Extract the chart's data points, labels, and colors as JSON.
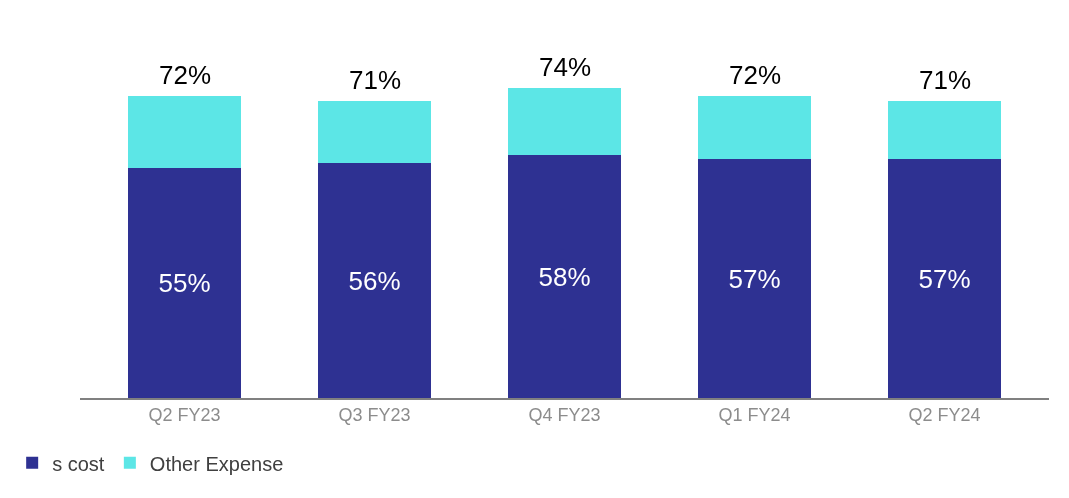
{
  "chart_data": {
    "type": "bar",
    "stacked": true,
    "categories": [
      "Q2 FY23",
      "Q3 FY23",
      "Q4 FY23",
      "Q1 FY24",
      "Q2 FY24"
    ],
    "series": [
      {
        "name": "s cost",
        "color": "#2e3192",
        "values": [
          55,
          56,
          58,
          57,
          57
        ],
        "value_labels": [
          "55%",
          "56%",
          "58%",
          "57%",
          "57%"
        ]
      },
      {
        "name": "Other Expense",
        "color": "#5ce6e6",
        "values": [
          17,
          15,
          16,
          15,
          14
        ]
      }
    ],
    "totals": [
      "72%",
      "71%",
      "74%",
      "72%",
      "71%"
    ],
    "legend": "bottom left"
  }
}
